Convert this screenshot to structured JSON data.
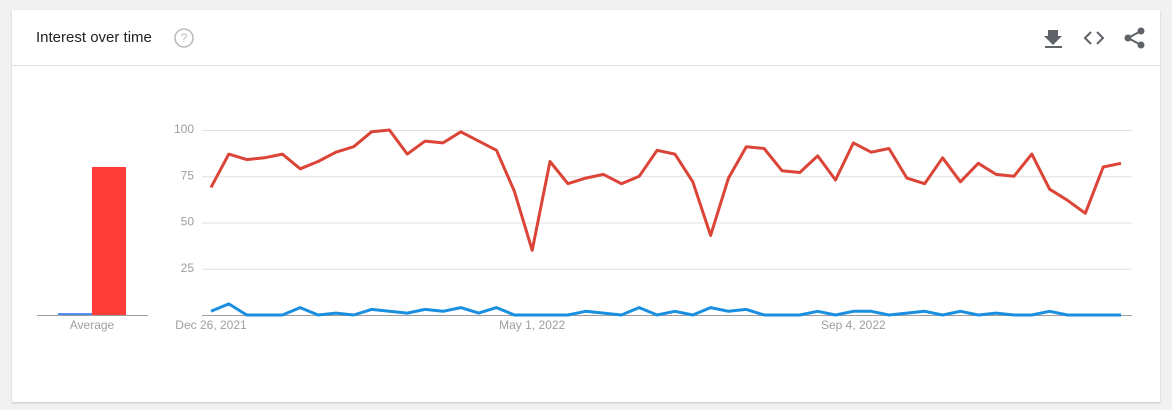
{
  "header": {
    "title": "Interest over time"
  },
  "chart_data": [
    {
      "type": "bar",
      "x_label": "Average",
      "ylim": [
        0,
        100
      ],
      "series": [
        {
          "color": "#4285f4",
          "values": [
            1
          ]
        },
        {
          "color": "#ff3d38",
          "values": [
            80
          ]
        }
      ]
    },
    {
      "type": "line",
      "ylim": [
        0,
        100
      ],
      "yticks": [
        25,
        50,
        75,
        100
      ],
      "grid": true,
      "categories": [
        "Dec 26, 2021",
        null,
        null,
        null,
        null,
        null,
        null,
        null,
        null,
        null,
        null,
        null,
        null,
        null,
        null,
        null,
        null,
        null,
        "May 1, 2022",
        null,
        null,
        null,
        null,
        null,
        null,
        null,
        null,
        null,
        null,
        null,
        null,
        null,
        null,
        null,
        null,
        null,
        "Sep 4, 2022",
        null,
        null,
        null,
        null,
        null,
        null,
        null,
        null,
        null,
        null,
        null,
        null,
        null,
        null,
        null
      ],
      "series": [
        {
          "color": "#db4437",
          "values": [
            69,
            87,
            84,
            85,
            87,
            79,
            83,
            88,
            91,
            99,
            100,
            87,
            94,
            93,
            99,
            94,
            89,
            67,
            35,
            83,
            71,
            74,
            76,
            71,
            75,
            89,
            87,
            72,
            43,
            74,
            91,
            90,
            78,
            77,
            86,
            73,
            93,
            88,
            90,
            74,
            71,
            85,
            72,
            82,
            76,
            75,
            87,
            68,
            62,
            55,
            80,
            82
          ]
        },
        {
          "color": "#1a8fe0",
          "values": [
            2,
            6,
            0,
            0,
            0,
            4,
            0,
            1,
            0,
            3,
            2,
            1,
            3,
            2,
            4,
            1,
            4,
            0,
            0,
            0,
            0,
            2,
            1,
            0,
            4,
            0,
            2,
            0,
            4,
            2,
            3,
            0,
            0,
            0,
            2,
            0,
            2,
            2,
            0,
            1,
            2,
            0,
            2,
            0,
            1,
            0,
            0,
            2,
            0,
            0,
            0,
            0
          ]
        }
      ]
    }
  ]
}
